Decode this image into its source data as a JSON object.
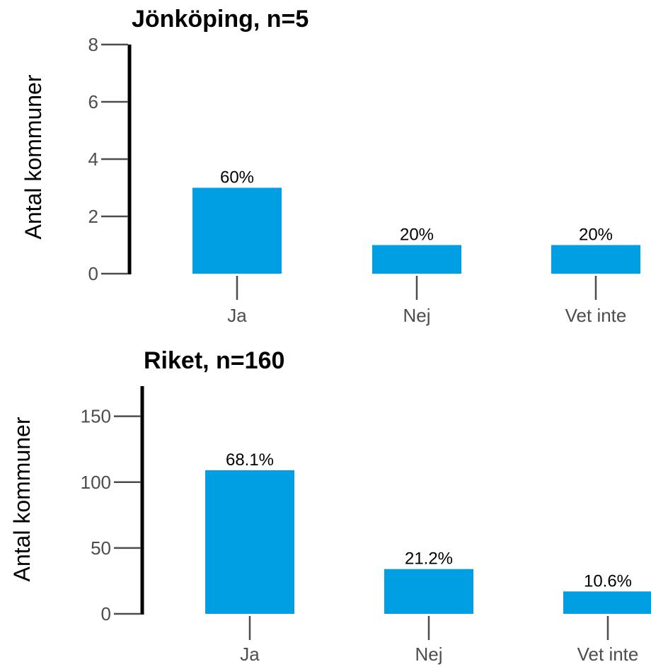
{
  "colors": {
    "bar": "#009fe3",
    "axis": "#000000",
    "tick": "#4d4d4d"
  },
  "chart_data": [
    {
      "type": "bar",
      "title": "Jönköping, n=5",
      "ylabel": "Antal kommuner",
      "xlabel": "",
      "categories": [
        "Ja",
        "Nej",
        "Vet inte"
      ],
      "values": [
        3,
        1,
        1
      ],
      "labels": [
        "60%",
        "20%",
        "20%"
      ],
      "ylim": [
        0,
        8
      ],
      "yticks": [
        0,
        2,
        4,
        6,
        8
      ],
      "grid": false
    },
    {
      "type": "bar",
      "title": "Riket, n=160",
      "ylabel": "Antal kommuner",
      "xlabel": "",
      "categories": [
        "Ja",
        "Nej",
        "Vet inte"
      ],
      "values": [
        109,
        34,
        17
      ],
      "labels": [
        "68.1%",
        "21.2%",
        "10.6%"
      ],
      "ylim": [
        0,
        160
      ],
      "yticks": [
        0,
        50,
        100,
        150
      ],
      "grid": false
    }
  ]
}
